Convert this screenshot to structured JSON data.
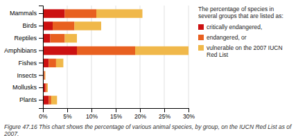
{
  "chart_data": {
    "type": "bar",
    "orientation": "horizontal",
    "stacked": true,
    "grid": true,
    "subtitle": "The percentage of species in several groups that are listed as:",
    "annotations": [
      "Figure 47.16 This chart shows the percentage of various animal species, by group, on the IUCN Red List as of\n2007."
    ],
    "categories": [
      "Mammals",
      "Birds",
      "Reptiles",
      "Amphibians",
      "Fishes",
      "Insects",
      "Mollusks",
      "Plants"
    ],
    "series": [
      {
        "name": "critically endangered,",
        "color": "#cc1111",
        "values": [
          4.5,
          2.0,
          1.5,
          7.0,
          1.2,
          0.2,
          0.5,
          1.2
        ]
      },
      {
        "name": "endangered, or",
        "color": "#e86020",
        "values": [
          6.5,
          4.5,
          3.0,
          12.0,
          1.5,
          0.2,
          0.3,
          0.5
        ]
      },
      {
        "name": "vulnerable on the 2007 IUCN Red List",
        "color": "#f0b84a",
        "values": [
          9.5,
          5.5,
          2.5,
          11.0,
          1.5,
          0.1,
          0.2,
          1.2
        ]
      }
    ],
    "xlim": [
      0,
      30
    ],
    "xticks": [
      {
        "value": 0,
        "label": "0%"
      },
      {
        "value": 5,
        "label": "5%"
      },
      {
        "value": 10,
        "label": "10%"
      },
      {
        "value": 15,
        "label": "15%"
      },
      {
        "value": 20,
        "label": "20%"
      },
      {
        "value": 25,
        "label": "25%"
      },
      {
        "value": 30,
        "label": "30%"
      }
    ]
  }
}
